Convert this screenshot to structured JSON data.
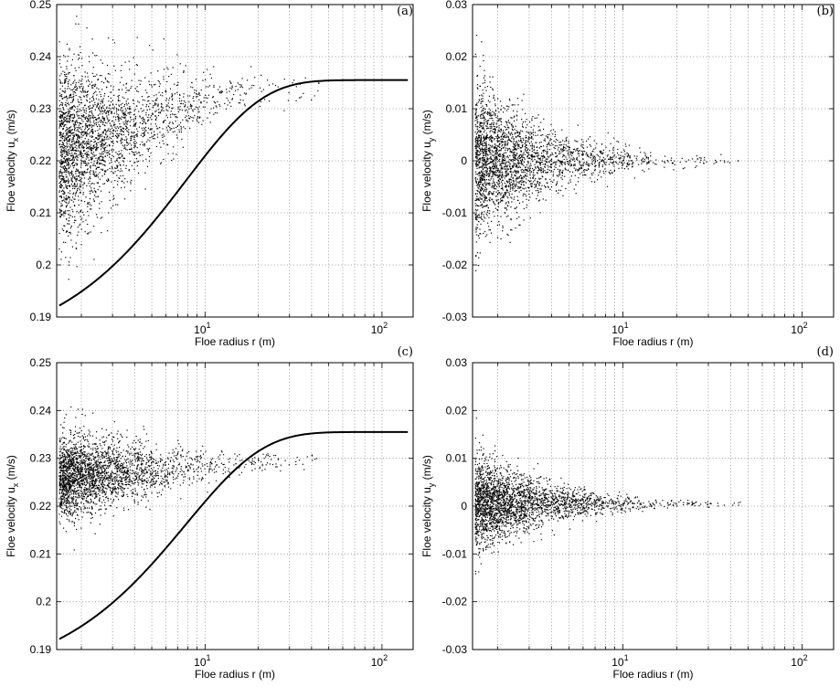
{
  "chart_data": [
    {
      "id": "a",
      "type": "scatter",
      "panel_label": "(a)",
      "xlabel": "Floe radius r (m)",
      "ylabel_main": "Floe velocity u",
      "ylabel_sub": "x",
      "ylabel_unit": " (m/s)",
      "xscale": "log",
      "xlim": [
        1.45,
        150
      ],
      "ylim": [
        0.19,
        0.25
      ],
      "yticks": [
        "0.19",
        "0.2",
        "0.21",
        "0.22",
        "0.23",
        "0.24",
        "0.25"
      ],
      "xticks": [
        {
          "base": "10",
          "exp": "1",
          "value": 10
        },
        {
          "base": "10",
          "exp": "2",
          "value": 100
        }
      ],
      "grid": true,
      "scatter_model": {
        "count": 2600,
        "seed": 11,
        "shape": "band",
        "mean_start": 0.222,
        "spread": 0.0085
      },
      "curve": {
        "name": "",
        "formula": "0.2355 - 0.0433*exp(-(r-1.5)/7.8)",
        "xrange": [
          1.5,
          140
        ]
      }
    },
    {
      "id": "b",
      "type": "scatter",
      "panel_label": "(b)",
      "xlabel": "Floe radius r (m)",
      "ylabel_main": "Floe velocity u",
      "ylabel_sub": "y",
      "ylabel_unit": " (m/s)",
      "xscale": "log",
      "xlim": [
        1.45,
        150
      ],
      "ylim": [
        -0.03,
        0.03
      ],
      "yticks": [
        "-0.03",
        "-0.02",
        "-0.01",
        "0",
        "0.01",
        "0.02",
        "0.03"
      ],
      "xticks": [
        {
          "base": "10",
          "exp": "1",
          "value": 10
        },
        {
          "base": "10",
          "exp": "2",
          "value": 100
        }
      ],
      "grid": true,
      "scatter_model": {
        "count": 2600,
        "seed": 23,
        "shape": "funnel",
        "center": 0.0,
        "spread": 0.0075
      }
    },
    {
      "id": "c",
      "type": "scatter",
      "panel_label": "(c)",
      "xlabel": "Floe radius r (m)",
      "ylabel_main": "Floe velocity u",
      "ylabel_sub": "x",
      "ylabel_unit": " (m/s)",
      "xscale": "log",
      "xlim": [
        1.45,
        150
      ],
      "ylim": [
        0.19,
        0.25
      ],
      "yticks": [
        "0.19",
        "0.2",
        "0.21",
        "0.22",
        "0.23",
        "0.24",
        "0.25"
      ],
      "xticks": [
        {
          "base": "10",
          "exp": "1",
          "value": 10
        },
        {
          "base": "10",
          "exp": "2",
          "value": 100
        }
      ],
      "grid": true,
      "scatter_model": {
        "count": 2600,
        "seed": 37,
        "shape": "flat",
        "mean_start": 0.226,
        "spread": 0.0045
      },
      "curve": {
        "name": "",
        "formula": "0.2355 - 0.0433*exp(-(r-1.5)/7.8)",
        "xrange": [
          1.5,
          140
        ]
      }
    },
    {
      "id": "d",
      "type": "scatter",
      "panel_label": "(d)",
      "xlabel": "Floe radius r (m)",
      "ylabel_main": "Floe velocity u",
      "ylabel_sub": "y",
      "ylabel_unit": " (m/s)",
      "xscale": "log",
      "xlim": [
        1.45,
        150
      ],
      "ylim": [
        -0.03,
        0.03
      ],
      "yticks": [
        "-0.03",
        "-0.02",
        "-0.01",
        "0",
        "0.01",
        "0.02",
        "0.03"
      ],
      "xticks": [
        {
          "base": "10",
          "exp": "1",
          "value": 10
        },
        {
          "base": "10",
          "exp": "2",
          "value": 100
        }
      ],
      "grid": true,
      "scatter_model": {
        "count": 2600,
        "seed": 51,
        "shape": "funnel",
        "center": 0.0005,
        "spread": 0.0052
      }
    }
  ]
}
